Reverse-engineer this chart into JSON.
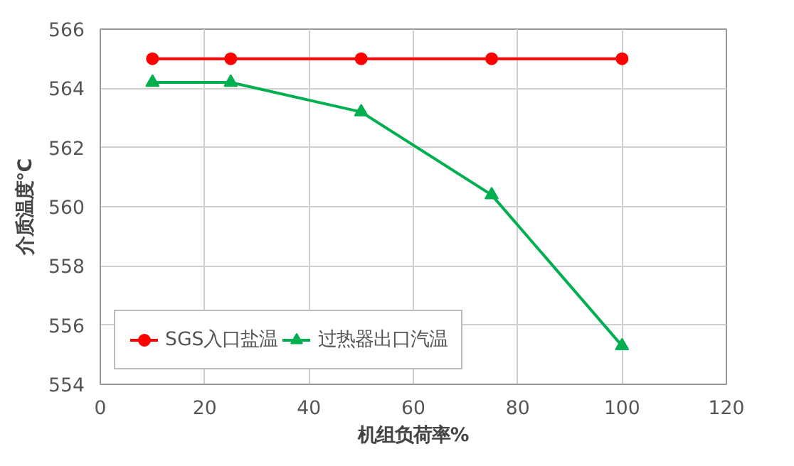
{
  "chart_data": {
    "type": "line",
    "xlabel": "机组负荷率%",
    "ylabel": "介质温度℃",
    "x": [
      10,
      25,
      50,
      75,
      100
    ],
    "series": [
      {
        "name": "SGS入口盐温",
        "color": "#ff0000",
        "marker": "circle",
        "values": [
          565,
          565,
          565,
          565,
          565
        ]
      },
      {
        "name": "过热器出口汽温",
        "color": "#00b050",
        "marker": "triangle",
        "values": [
          564.2,
          564.2,
          563.2,
          560.4,
          555.3
        ]
      }
    ],
    "xlim": [
      0,
      120
    ],
    "xticks": [
      0,
      20,
      40,
      60,
      80,
      100,
      120
    ],
    "ylim": [
      554,
      566
    ],
    "yticks": [
      554,
      556,
      558,
      560,
      562,
      564,
      566
    ],
    "grid": true,
    "legend": "bottom left"
  }
}
